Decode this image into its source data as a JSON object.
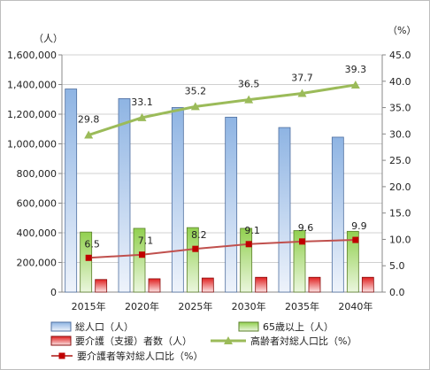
{
  "chart_data": {
    "type": "bar",
    "categories": [
      "2015年",
      "2020年",
      "2025年",
      "2030年",
      "2035年",
      "2040年"
    ],
    "left_axis": {
      "unit": "（人）",
      "ylim": [
        0,
        1600000
      ],
      "ticks": [
        "0",
        "200,000",
        "400,000",
        "600,000",
        "800,000",
        "1,000,000",
        "1,200,000",
        "1,400,000",
        "1,600,000"
      ]
    },
    "right_axis": {
      "unit": "（%）",
      "ylim": [
        0,
        45
      ],
      "ticks": [
        "0.0",
        "5.0",
        "10.0",
        "15.0",
        "20.0",
        "25.0",
        "30.0",
        "35.0",
        "40.0",
        "45.0"
      ]
    },
    "series": [
      {
        "name": "総人口（人）",
        "type": "bar",
        "axis": "left",
        "color": "#8eb4e3",
        "values": [
          1370000,
          1305000,
          1245000,
          1180000,
          1110000,
          1045000
        ]
      },
      {
        "name": "65歳以上（人）",
        "type": "bar",
        "axis": "left",
        "color": "#92d050",
        "values": [
          405000,
          430000,
          435000,
          430000,
          415000,
          410000
        ]
      },
      {
        "name": "要介護（支援）者数（人）",
        "type": "bar",
        "axis": "left",
        "color": "#e02020",
        "values": [
          85000,
          90000,
          95000,
          100000,
          100000,
          100000
        ]
      },
      {
        "name": "高齢者対総人口比（%）",
        "type": "line",
        "axis": "right",
        "color": "#9bbb59",
        "values": [
          29.8,
          33.1,
          35.2,
          36.5,
          37.7,
          39.3
        ],
        "labels": [
          "29.8",
          "33.1",
          "35.2",
          "36.5",
          "37.7",
          "39.3"
        ]
      },
      {
        "name": "要介護者等対総人口比（%）",
        "type": "line",
        "axis": "right",
        "color": "#c0504d",
        "values": [
          6.5,
          7.1,
          8.2,
          9.1,
          9.6,
          9.9
        ],
        "labels": [
          "6.5",
          "7.1",
          "8.2",
          "9.1",
          "9.6",
          "9.9"
        ]
      }
    ],
    "grid": true,
    "legend_position": "bottom"
  }
}
